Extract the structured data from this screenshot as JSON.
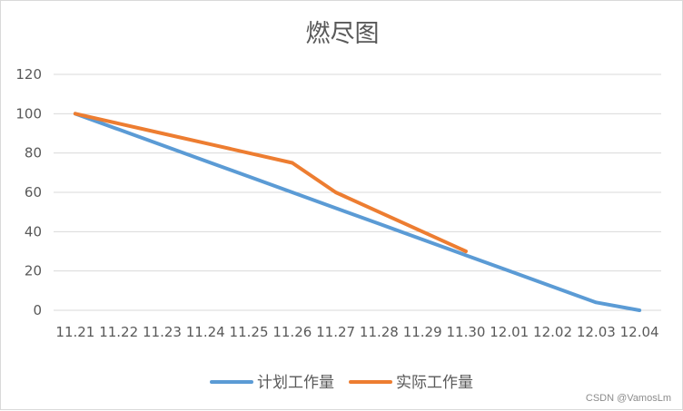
{
  "chart_data": {
    "type": "line",
    "title": "燃尽图",
    "xlabel": "",
    "ylabel": "",
    "categories": [
      "11.21",
      "11.22",
      "11.23",
      "11.24",
      "11.25",
      "11.26",
      "11.27",
      "11.28",
      "11.29",
      "11.30",
      "12.01",
      "12.02",
      "12.03",
      "12.04"
    ],
    "ylim": [
      0,
      120
    ],
    "yticks": [
      0,
      20,
      40,
      60,
      80,
      100,
      120
    ],
    "grid": true,
    "legend_position": "bottom",
    "series": [
      {
        "name": "计划工作量",
        "color": "#5B9BD5",
        "values": [
          100,
          92,
          84,
          76,
          68,
          60,
          52,
          44,
          36,
          28,
          20,
          12,
          4,
          0
        ]
      },
      {
        "name": "实际工作量",
        "color": "#ED7D31",
        "values": [
          100,
          95,
          90,
          85,
          80,
          75,
          60,
          50,
          40,
          30,
          null,
          null,
          null,
          null
        ]
      }
    ]
  },
  "watermark": "CSDN @VamosLm"
}
